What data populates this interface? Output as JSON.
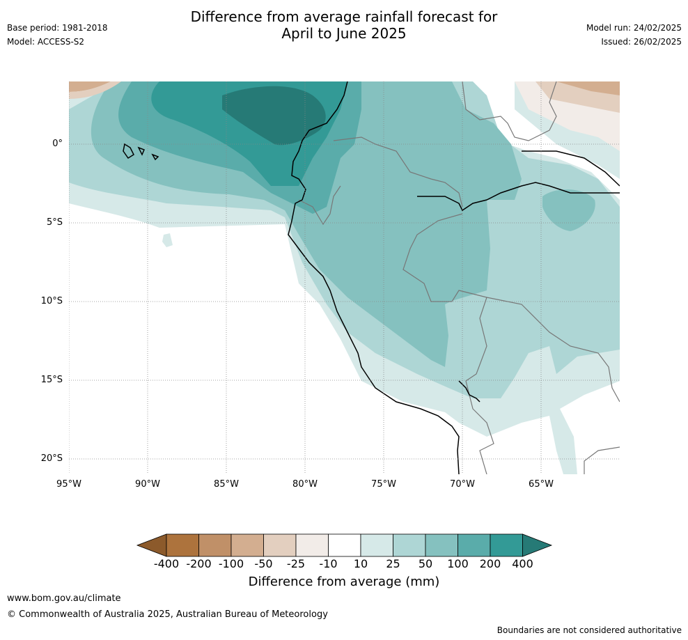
{
  "title": {
    "line1": "Difference from average rainfall forecast for",
    "line2": "April to June 2025"
  },
  "meta": {
    "base_period": "Base period: 1981-2018",
    "model": "Model: ACCESS-S2",
    "model_run": "Model run: 24/02/2025",
    "issued": "Issued: 26/02/2025"
  },
  "axes": {
    "lat_labels": [
      "0°",
      "5°S",
      "10°S",
      "15°S",
      "20°S"
    ],
    "lon_labels": [
      "95°W",
      "90°W",
      "85°W",
      "80°W",
      "75°W",
      "70°W",
      "65°W"
    ]
  },
  "colorbar": {
    "title": "Difference from average (mm)",
    "ticks": [
      "-400",
      "-200",
      "-100",
      "-50",
      "-25",
      "-10",
      "10",
      "25",
      "50",
      "100",
      "200",
      "400"
    ],
    "colors": [
      "#8c5a2b",
      "#ad733d",
      "#c09068",
      "#d3ae90",
      "#e3cfbf",
      "#f2ece8",
      "#ffffff",
      "#d6e9e8",
      "#aed6d5",
      "#85c1bf",
      "#5aacaa",
      "#339a96",
      "#267a76"
    ]
  },
  "footer": {
    "url": "www.bom.gov.au/climate",
    "copyright": "© Commonwealth of Australia 2025, Australian Bureau of Meteorology",
    "disclaimer": "Boundaries are not considered authoritative"
  }
}
